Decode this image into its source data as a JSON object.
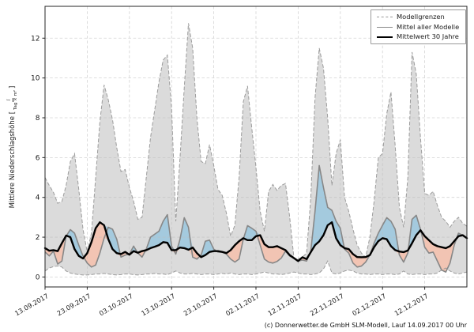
{
  "figure": {
    "ylabel_prefix": "Mittlere Niederschlagshöhe [",
    "ylabel_frac_num": "l",
    "ylabel_frac_den": "Tag × m²",
    "ylabel_suffix": "]",
    "caption": "(c) Donnerwetter.de GmbH SLM-Modell, Lauf 14.09.2017 00 Uhr"
  },
  "legend": {
    "items": [
      {
        "label": "Modellgrenzen",
        "style": "dashed-gray"
      },
      {
        "label": "Mittel aller Modelle",
        "style": "solid-gray"
      },
      {
        "label": "Mittelwert 30 Jahre",
        "style": "solid-black-thick"
      }
    ]
  },
  "colors": {
    "band_fill": "#dbdbdb",
    "bound_line": "#9c9c9c",
    "model_mean_line": "#878787",
    "mean30_line": "#000000",
    "above_fill": "#a4cade",
    "below_fill": "#f2c4b3",
    "grid": "#bdbdbd",
    "spine": "#262626"
  },
  "chart_data": {
    "type": "line",
    "title": "",
    "xlabel": "",
    "ylabel": "Mittlere Niederschlagshöhe [l/(Tag × m²)]",
    "x_unit": "Tage ab 13.09.2017 (taegliche Werte)",
    "xlim": [
      0,
      100
    ],
    "ylim": [
      -0.5,
      13.6
    ],
    "grid": true,
    "legend_position": "upper right",
    "x_tick_days": [
      0,
      10,
      20,
      30,
      40,
      50,
      60,
      70,
      80,
      90
    ],
    "x_tick_labels": [
      "13.09.2017",
      "23.09.2017",
      "03.10.2017",
      "13.10.2017",
      "23.10.2017",
      "02.11.2017",
      "12.11.2017",
      "22.11.2017",
      "02.12.2017",
      "12.12.2017"
    ],
    "y_ticks": [
      0,
      2,
      4,
      6,
      8,
      10,
      12
    ],
    "fill_between": {
      "band": {
        "between": [
          "Modellgrenzen oben",
          "Modellgrenzen unten"
        ],
        "color": "#dbdbdb"
      },
      "above": {
        "where": "Mittel aller Modelle > Mittelwert 30 Jahre",
        "color": "#a4cade"
      },
      "below": {
        "where": "Mittel aller Modelle < Mittelwert 30 Jahre",
        "color": "#f2c4b3"
      }
    },
    "series": [
      {
        "name": "Modellgrenzen oben",
        "style": "dashed-gray",
        "values": [
          5.0,
          4.6,
          4.25,
          3.7,
          3.8,
          4.6,
          5.8,
          6.2,
          4.4,
          2.4,
          1.25,
          2.2,
          5.0,
          7.8,
          9.65,
          8.9,
          7.9,
          6.5,
          5.3,
          5.4,
          4.5,
          3.8,
          2.9,
          3.0,
          5.0,
          7.0,
          8.4,
          9.8,
          10.9,
          11.15,
          8.5,
          2.8,
          6.0,
          9.5,
          12.75,
          11.5,
          8.0,
          5.8,
          5.7,
          6.65,
          5.6,
          4.4,
          4.1,
          3.2,
          2.05,
          2.6,
          5.0,
          8.8,
          9.6,
          7.5,
          5.5,
          3.3,
          2.3,
          4.3,
          4.65,
          4.35,
          4.6,
          4.7,
          3.0,
          0.95,
          0.9,
          1.0,
          1.2,
          4.0,
          9.0,
          11.5,
          10.5,
          8.0,
          4.6,
          6.2,
          6.9,
          4.0,
          3.3,
          2.4,
          1.6,
          1.2,
          1.0,
          2.0,
          3.8,
          6.0,
          6.2,
          8.2,
          9.3,
          6.6,
          3.5,
          2.5,
          5.0,
          11.3,
          10.2,
          7.0,
          4.2,
          4.1,
          4.3,
          3.6,
          3.0,
          2.8,
          2.5,
          2.8,
          3.0,
          2.7,
          2.55
        ]
      },
      {
        "name": "Modellgrenzen unten",
        "style": "dashed-gray",
        "values": [
          0.3,
          0.45,
          0.52,
          0.55,
          0.5,
          0.3,
          0.2,
          0.15,
          0.12,
          0.1,
          0.1,
          0.12,
          0.15,
          0.15,
          0.18,
          0.15,
          0.12,
          0.1,
          0.12,
          0.15,
          0.15,
          0.12,
          0.1,
          0.12,
          0.15,
          0.15,
          0.18,
          0.15,
          0.15,
          0.12,
          0.2,
          0.3,
          0.2,
          0.15,
          0.15,
          0.18,
          0.15,
          0.12,
          0.15,
          0.15,
          0.12,
          0.15,
          0.18,
          0.15,
          0.2,
          0.15,
          0.12,
          0.15,
          0.15,
          0.12,
          0.15,
          0.2,
          0.25,
          0.2,
          0.15,
          0.15,
          0.12,
          0.15,
          0.2,
          0.25,
          0.2,
          0.15,
          0.15,
          0.12,
          0.15,
          0.2,
          0.4,
          0.8,
          0.2,
          0.15,
          0.2,
          0.3,
          0.35,
          0.3,
          0.2,
          0.15,
          0.15,
          0.12,
          0.15,
          0.15,
          0.12,
          0.15,
          0.15,
          0.12,
          0.15,
          0.3,
          0.15,
          0.12,
          0.15,
          0.15,
          0.12,
          0.15,
          0.15,
          0.2,
          0.35,
          0.45,
          0.3,
          0.2,
          0.15,
          0.2,
          0.25
        ]
      },
      {
        "name": "Mittel aller Modelle",
        "style": "solid-gray",
        "values": [
          1.26,
          1.06,
          1.3,
          0.65,
          0.8,
          2.05,
          2.38,
          2.2,
          1.6,
          1.05,
          0.7,
          0.5,
          0.6,
          1.2,
          1.95,
          2.5,
          2.4,
          1.9,
          1.0,
          1.1,
          1.15,
          1.55,
          1.2,
          1.0,
          1.4,
          2.0,
          2.15,
          2.3,
          2.8,
          3.13,
          1.55,
          1.15,
          1.9,
          2.98,
          2.5,
          1.0,
          0.9,
          1.1,
          1.8,
          1.85,
          1.4,
          1.25,
          1.25,
          1.15,
          0.9,
          0.75,
          0.9,
          1.9,
          2.58,
          2.45,
          2.3,
          1.6,
          0.9,
          0.75,
          0.7,
          0.78,
          0.95,
          1.3,
          1.05,
          0.95,
          0.8,
          0.85,
          0.8,
          1.3,
          3.3,
          5.6,
          4.5,
          3.5,
          3.35,
          2.8,
          2.45,
          1.4,
          1.2,
          0.7,
          0.5,
          0.55,
          0.75,
          1.1,
          1.7,
          2.2,
          2.6,
          2.98,
          2.8,
          2.4,
          1.1,
          0.75,
          1.2,
          2.9,
          3.1,
          2.4,
          1.5,
          1.2,
          1.25,
          0.8,
          0.35,
          0.25,
          0.7,
          1.6,
          2.2,
          2.1,
          1.95
        ]
      },
      {
        "name": "Mittelwert 30 Jahre",
        "style": "solid-black-thick",
        "values": [
          1.45,
          1.32,
          1.35,
          1.3,
          1.7,
          2.08,
          2.0,
          1.4,
          1.06,
          0.93,
          1.2,
          1.75,
          2.45,
          2.75,
          2.6,
          1.9,
          1.4,
          1.2,
          1.15,
          1.26,
          1.12,
          1.3,
          1.22,
          1.3,
          1.35,
          1.45,
          1.52,
          1.6,
          1.75,
          1.72,
          1.35,
          1.35,
          1.48,
          1.45,
          1.37,
          1.48,
          1.2,
          1.0,
          1.1,
          1.26,
          1.3,
          1.3,
          1.26,
          1.2,
          1.35,
          1.6,
          1.8,
          1.95,
          1.85,
          1.85,
          2.05,
          2.1,
          1.65,
          1.5,
          1.5,
          1.55,
          1.45,
          1.35,
          1.1,
          0.95,
          0.8,
          0.99,
          0.9,
          1.25,
          1.6,
          1.79,
          2.1,
          2.6,
          2.75,
          1.95,
          1.6,
          1.45,
          1.4,
          1.15,
          1.0,
          0.99,
          1.0,
          1.1,
          1.5,
          1.8,
          1.95,
          1.9,
          1.55,
          1.35,
          1.28,
          1.25,
          1.33,
          1.7,
          2.1,
          2.35,
          2.05,
          1.85,
          1.65,
          1.55,
          1.5,
          1.45,
          1.55,
          1.8,
          2.05,
          2.1,
          1.95
        ]
      }
    ]
  }
}
